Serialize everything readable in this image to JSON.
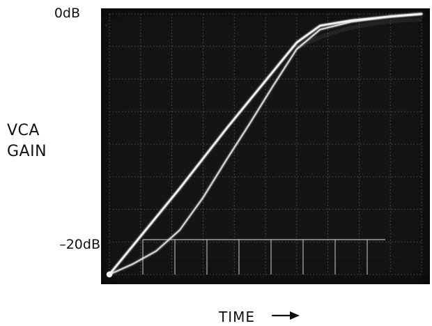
{
  "chart_data": {
    "type": "line",
    "title": "",
    "xlabel": "TIME",
    "ylabel_lines": [
      "VCA",
      "GAIN"
    ],
    "y_tick_labels": {
      "top": "0dB",
      "bottom": "–20dB"
    },
    "ylim": [
      -20,
      0
    ],
    "grid": true,
    "legend": "none",
    "background_color": "#141414",
    "trace_color": "#f4f4f4",
    "grid_color": "#7f7f7f",
    "series": [
      {
        "values": [
          [
            0,
            -20
          ],
          [
            0.3,
            -17.8
          ],
          [
            0.6,
            -15.6
          ],
          [
            0.9,
            -13.4
          ],
          [
            1.2,
            -11.1
          ],
          [
            1.5,
            -8.8
          ],
          [
            1.8,
            -6.6
          ],
          [
            2.1,
            -4.4
          ],
          [
            2.4,
            -2.2
          ],
          [
            2.7,
            -0.9
          ],
          [
            3.1,
            -0.5
          ],
          [
            3.6,
            -0.2
          ],
          [
            4.0,
            0
          ]
        ]
      },
      {
        "values": [
          [
            0,
            -20
          ],
          [
            0.3,
            -19.2
          ],
          [
            0.6,
            -18.2
          ],
          [
            0.9,
            -16.6
          ],
          [
            1.2,
            -14.1
          ],
          [
            1.5,
            -11.2
          ],
          [
            1.8,
            -8.4
          ],
          [
            2.1,
            -5.5
          ],
          [
            2.4,
            -2.7
          ],
          [
            2.7,
            -1.2
          ],
          [
            3.1,
            -0.6
          ],
          [
            3.6,
            -0.2
          ],
          [
            4.0,
            0
          ]
        ]
      }
    ]
  }
}
